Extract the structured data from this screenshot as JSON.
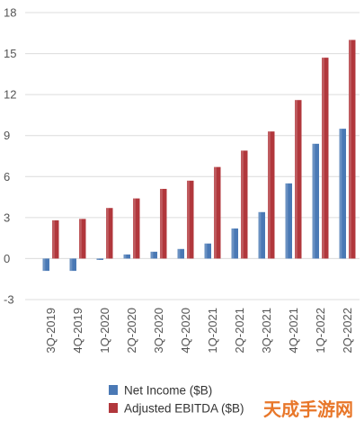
{
  "chart_data": {
    "type": "bar",
    "categories": [
      "3Q-2019",
      "4Q-2019",
      "1Q-2020",
      "2Q-2020",
      "3Q-2020",
      "4Q-2020",
      "1Q-2021",
      "2Q-2021",
      "3Q-2021",
      "4Q-2021",
      "1Q-2022",
      "2Q-2022"
    ],
    "series": [
      {
        "name": "Net Income ($B)",
        "color": "#4a79b5",
        "values": [
          -0.9,
          -0.9,
          -0.1,
          0.3,
          0.5,
          0.7,
          1.1,
          2.2,
          3.4,
          5.5,
          8.4,
          9.5
        ]
      },
      {
        "name": "Adjusted EBITDA ($B)",
        "color": "#b1373c",
        "values": [
          2.8,
          2.9,
          3.7,
          4.4,
          5.1,
          5.7,
          6.7,
          7.9,
          9.3,
          11.6,
          14.7,
          16.0
        ]
      }
    ],
    "yticks": [
      -3,
      0,
      3,
      6,
      9,
      12,
      15,
      18
    ],
    "ylim": [
      -3,
      18
    ],
    "grid": true,
    "legend_position": "bottom-center",
    "title": "",
    "xlabel": "",
    "ylabel": ""
  },
  "legend": {
    "series_0_label": "Net Income ($B)",
    "series_1_label": "Adjusted EBITDA ($B)"
  },
  "watermark": {
    "text": "天成手游网"
  }
}
